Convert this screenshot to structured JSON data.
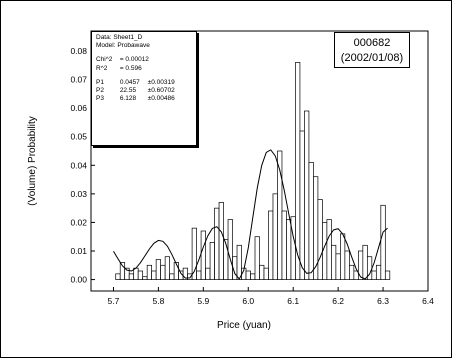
{
  "chart_data": {
    "type": "bar",
    "xlabel": "Price (yuan)",
    "ylabel": "(Volume) Probability",
    "xlim": [
      5.65,
      6.4
    ],
    "ylim": [
      -0.004,
      0.087
    ],
    "x_ticks": [
      "5.7",
      "5.8",
      "5.9",
      "6.0",
      "6.1",
      "6.2",
      "6.3",
      "6.4"
    ],
    "y_ticks": [
      "0.00",
      "0.01",
      "0.02",
      "0.03",
      "0.04",
      "0.05",
      "0.06",
      "0.07",
      "0.08"
    ],
    "grid": false,
    "bin_width": 0.01,
    "bars": {
      "x": [
        5.71,
        5.72,
        5.73,
        5.74,
        5.75,
        5.76,
        5.77,
        5.78,
        5.79,
        5.8,
        5.81,
        5.82,
        5.83,
        5.84,
        5.85,
        5.86,
        5.87,
        5.88,
        5.89,
        5.9,
        5.91,
        5.92,
        5.93,
        5.94,
        5.95,
        5.96,
        5.97,
        5.98,
        5.99,
        6.0,
        6.01,
        6.02,
        6.03,
        6.04,
        6.05,
        6.06,
        6.07,
        6.08,
        6.09,
        6.1,
        6.11,
        6.12,
        6.13,
        6.14,
        6.15,
        6.16,
        6.17,
        6.18,
        6.19,
        6.2,
        6.21,
        6.22,
        6.23,
        6.24,
        6.25,
        6.26,
        6.27,
        6.28,
        6.29,
        6.3,
        6.31
      ],
      "values": [
        0.002,
        0.006,
        0.004,
        0.002,
        0.004,
        0.003,
        0.001,
        0.005,
        0.003,
        0.007,
        0.005,
        0.008,
        0.002,
        0.006,
        0.003,
        0.004,
        0.002,
        0.018,
        0.003,
        0.017,
        0.004,
        0.013,
        0.025,
        0.027,
        0.014,
        0.021,
        0.008,
        0.012,
        0.004,
        0.003,
        0.002,
        0.015,
        0.005,
        0.004,
        0.024,
        0.03,
        0.045,
        0.024,
        0.021,
        0.022,
        0.076,
        0.052,
        0.059,
        0.041,
        0.036,
        0.028,
        0.02,
        0.021,
        0.012,
        0.009,
        0.016,
        0.01,
        0.005,
        0.003,
        0.01,
        0.012,
        0.008,
        0.003,
        0.005,
        0.026,
        0.003
      ]
    },
    "fit_curve": {
      "x": [
        5.7,
        5.71,
        5.72,
        5.73,
        5.74,
        5.75,
        5.76,
        5.77,
        5.78,
        5.79,
        5.8,
        5.81,
        5.82,
        5.83,
        5.84,
        5.85,
        5.86,
        5.87,
        5.88,
        5.89,
        5.9,
        5.91,
        5.92,
        5.93,
        5.94,
        5.95,
        5.96,
        5.97,
        5.98,
        5.99,
        6.0,
        6.01,
        6.02,
        6.03,
        6.04,
        6.05,
        6.06,
        6.07,
        6.08,
        6.09,
        6.1,
        6.11,
        6.12,
        6.13,
        6.14,
        6.15,
        6.16,
        6.17,
        6.18,
        6.19,
        6.2,
        6.21,
        6.22,
        6.23,
        6.24,
        6.25,
        6.26,
        6.27,
        6.28,
        6.29,
        6.3,
        6.31
      ],
      "y": [
        0.0099,
        0.0073,
        0.0048,
        0.0033,
        0.003,
        0.004,
        0.0059,
        0.0083,
        0.0107,
        0.0127,
        0.0137,
        0.0134,
        0.0117,
        0.0088,
        0.0054,
        0.0022,
        0.0005,
        0.0006,
        0.0029,
        0.0069,
        0.0114,
        0.0153,
        0.0179,
        0.0185,
        0.0167,
        0.0126,
        0.0071,
        0.0021,
        0.0002,
        0.0032,
        0.0111,
        0.0216,
        0.032,
        0.04,
        0.0445,
        0.0454,
        0.0433,
        0.0384,
        0.0313,
        0.0231,
        0.0151,
        0.0086,
        0.0042,
        0.0022,
        0.0024,
        0.0045,
        0.0078,
        0.0117,
        0.0152,
        0.0174,
        0.0178,
        0.016,
        0.0125,
        0.008,
        0.0038,
        0.0009,
        0.0002,
        0.0019,
        0.0058,
        0.0112,
        0.0166,
        0.018
      ]
    }
  },
  "fit_box": {
    "data_label": "Data: Sheet1_D",
    "model_label": "Model: Probawave",
    "chi2_label": "Chi^2",
    "chi2_value": "= 0.00012",
    "r2_label": "R^2",
    "r2_value": "= 0.596",
    "params": [
      {
        "name": "P1",
        "value": "0.0457",
        "error": "±0.00319"
      },
      {
        "name": "P2",
        "value": "22.55",
        "error": "±0.60702"
      },
      {
        "name": "P3",
        "value": "6.128",
        "error": "±0.00486"
      }
    ]
  },
  "stock_box": {
    "code": "000682",
    "date": "(2002/01/08)"
  }
}
